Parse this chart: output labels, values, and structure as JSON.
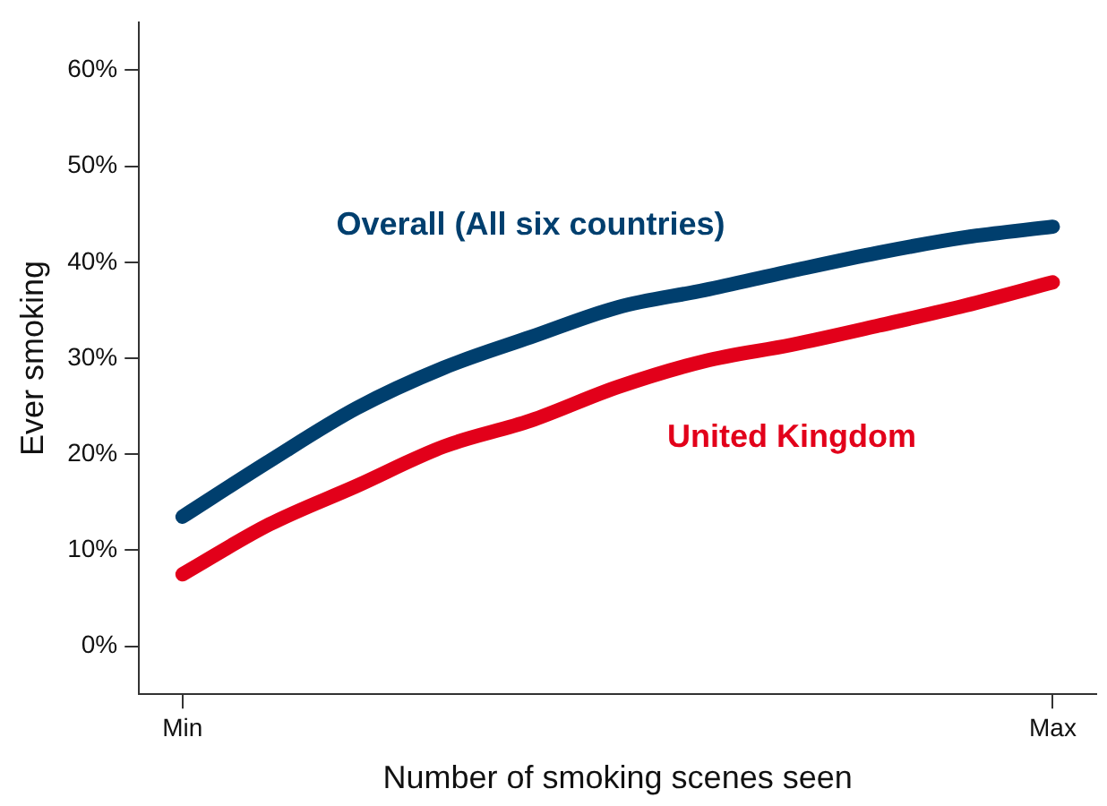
{
  "chart_data": {
    "type": "line",
    "xlabel": "Number of smoking scenes seen",
    "ylabel": "Ever smoking",
    "categories": [
      "Min",
      null,
      null,
      null,
      null,
      null,
      null,
      null,
      null,
      null,
      "Max"
    ],
    "ylim": [
      -5,
      65
    ],
    "yticks": [
      {
        "value": 0,
        "label": "0%"
      },
      {
        "value": 10,
        "label": "10%"
      },
      {
        "value": 20,
        "label": "20%"
      },
      {
        "value": 30,
        "label": "30%"
      },
      {
        "value": 40,
        "label": "40%"
      },
      {
        "value": 50,
        "label": "50%"
      },
      {
        "value": 60,
        "label": "60%"
      }
    ],
    "grid": false,
    "legend": false,
    "marker": "none",
    "line_style": "solid",
    "series": [
      {
        "name": "Overall (All six countries)",
        "color": "#003f6e",
        "values": [
          13.5,
          19.3,
          24.8,
          29.0,
          32.2,
          35.3,
          37.1,
          39.1,
          41.0,
          42.6,
          43.7
        ]
      },
      {
        "name": "United Kingdom",
        "color": "#e2001a",
        "values": [
          7.5,
          12.7,
          16.7,
          20.8,
          23.5,
          27.0,
          29.7,
          31.4,
          33.4,
          35.5,
          37.9
        ]
      }
    ]
  }
}
